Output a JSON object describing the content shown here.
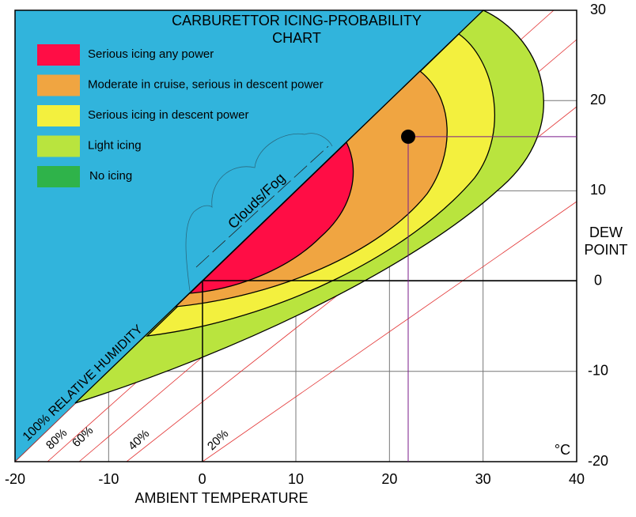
{
  "chart_data": {
    "type": "scatter",
    "title": "CARBURETTOR ICING-PROBABILITY CHART",
    "x_label": "AMBIENT TEMPERATURE",
    "y_label": "DEW POINT",
    "unit": "°C",
    "xlim": [
      -20,
      40
    ],
    "xticks": [
      -20,
      -10,
      0,
      10,
      20,
      30,
      40
    ],
    "ylim": [
      -20,
      30
    ],
    "yticks": [
      -20,
      -10,
      0,
      10,
      20,
      30
    ],
    "grid": true,
    "x": [
      22
    ],
    "values": [
      16
    ],
    "color": "#000000",
    "zones": [
      {
        "name": "Serious icing any power",
        "color": "#ff0d45"
      },
      {
        "name": "Moderate in cruise, serious in descent power",
        "color": "#f0a541"
      },
      {
        "name": "Serious icing in descent power",
        "color": "#f3f03e"
      },
      {
        "name": "Light icing",
        "color": "#b9e43e"
      },
      {
        "name": "No icing",
        "color": "#2fb34a"
      }
    ],
    "annotation": "Clouds/Fog",
    "humidity_labels": [
      "100% RELATIVE HUMIDITY",
      "80%",
      "60%",
      "40%",
      "20%"
    ]
  }
}
